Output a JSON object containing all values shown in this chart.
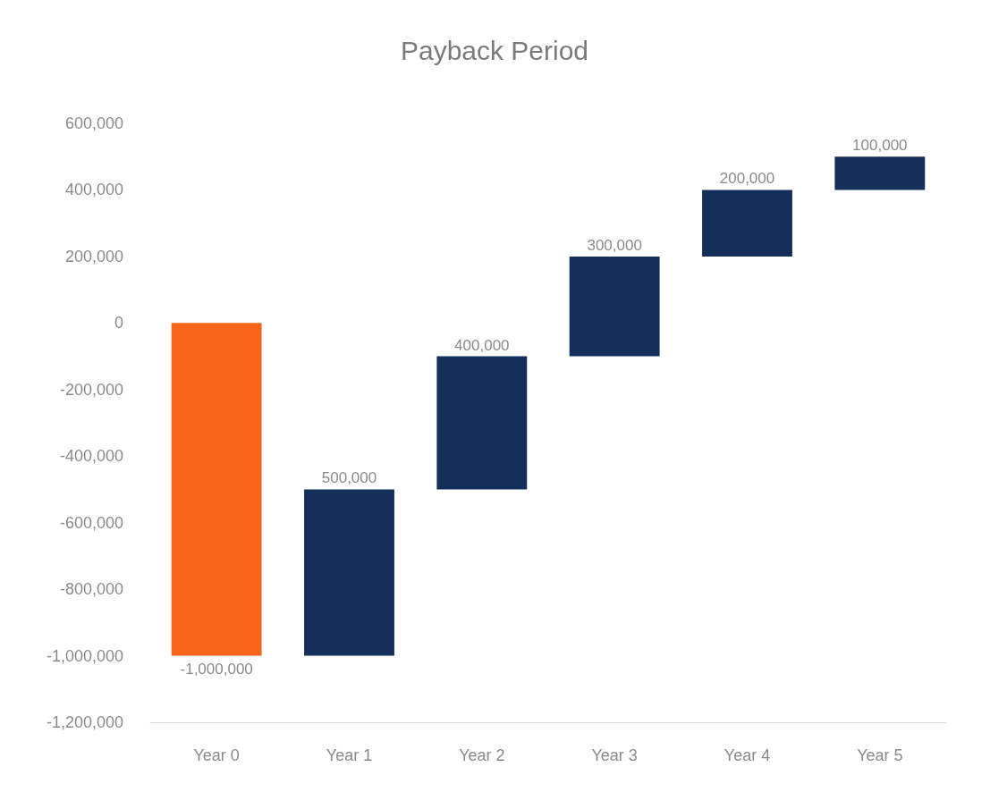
{
  "chart_data": {
    "type": "bar",
    "title": "Payback Period",
    "categories": [
      "Year 0",
      "Year 1",
      "Year 2",
      "Year 3",
      "Year 4",
      "Year 5"
    ],
    "values": [
      -1000000,
      500000,
      400000,
      300000,
      200000,
      100000
    ],
    "value_labels": [
      "-1,000,000",
      "500,000",
      "400,000",
      "300,000",
      "200,000",
      "100,000"
    ],
    "base": [
      0,
      -1000000,
      -500000,
      -100000,
      200000,
      400000
    ],
    "colors": [
      "#f7661a",
      "#14305a",
      "#14305a",
      "#14305a",
      "#14305a",
      "#14305a"
    ],
    "ylim": [
      -1200000,
      600000
    ],
    "yticks": [
      {
        "value": -1200000,
        "label": "-1,200,000"
      },
      {
        "value": -1000000,
        "label": "-1,000,000"
      },
      {
        "value": -800000,
        "label": "-800,000"
      },
      {
        "value": -600000,
        "label": "-600,000"
      },
      {
        "value": -400000,
        "label": "-400,000"
      },
      {
        "value": -200000,
        "label": "-200,000"
      },
      0,
      {
        "value": 200000,
        "label": "200,000"
      },
      {
        "value": 400000,
        "label": "400,000"
      },
      {
        "value": 600000,
        "label": "600,000"
      }
    ]
  }
}
